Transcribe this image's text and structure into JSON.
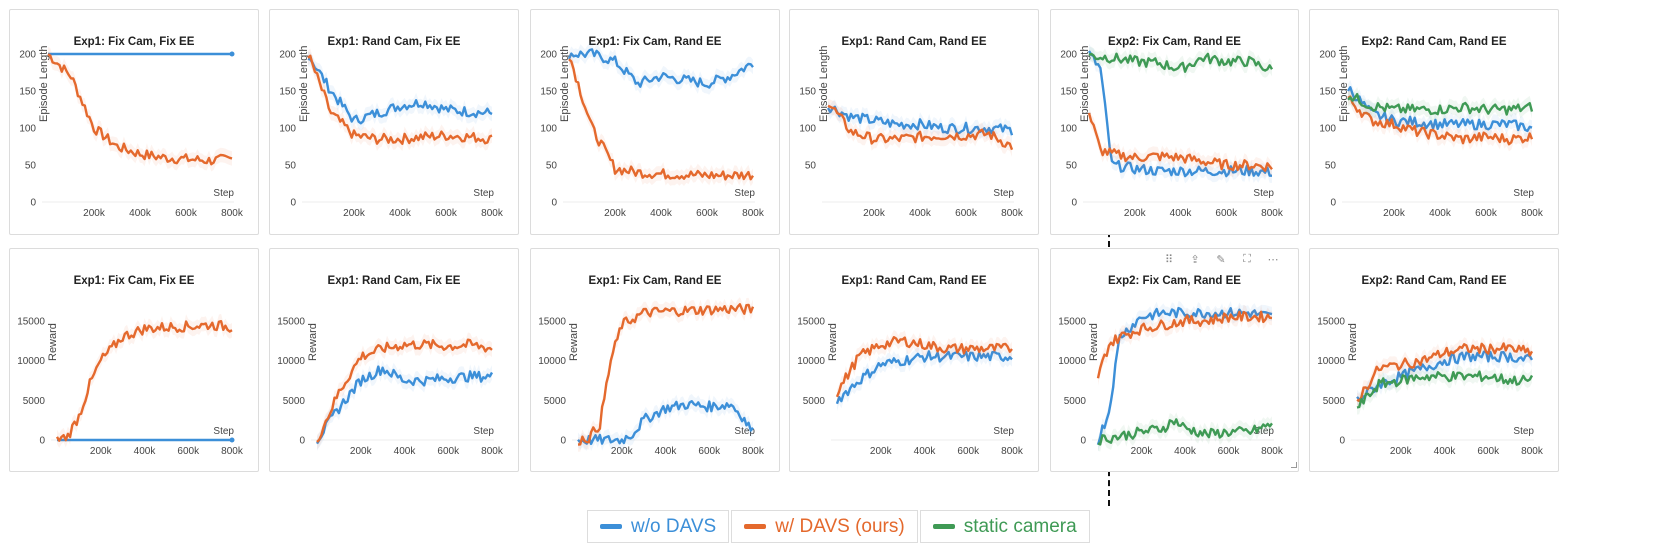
{
  "colors": {
    "wo": "#3c8fd8",
    "w": "#e4692d",
    "static": "#3f9a55"
  },
  "legend": [
    {
      "label": "w/o DAVS",
      "color": "#3c8fd8"
    },
    {
      "label": "w/ DAVS (ours)",
      "color": "#e4692d"
    },
    {
      "label": "static camera",
      "color": "#3f9a55"
    }
  ],
  "toolbar_icons": [
    "drag-handle-icon",
    "share-icon",
    "edit-icon",
    "expand-icon",
    "more-icon"
  ],
  "panels": [
    {
      "title": "Exp1: Fix Cam, Fix EE",
      "ylabel": "Episode Length",
      "xlabel": "Step",
      "yticks": [
        0,
        50,
        100,
        150,
        200
      ],
      "xticks": [
        "200k",
        "400k",
        "600k",
        "800k"
      ],
      "ymax": 200,
      "kind": "len-fixfix"
    },
    {
      "title": "Exp1: Rand Cam, Fix EE",
      "ylabel": "Episode Length",
      "xlabel": "Step",
      "yticks": [
        0,
        50,
        100,
        150,
        200
      ],
      "xticks": [
        "200k",
        "400k",
        "600k",
        "800k"
      ],
      "ymax": 200,
      "kind": "len-randfix"
    },
    {
      "title": "Exp1: Fix Cam, Rand EE",
      "ylabel": "Episode Length",
      "xlabel": "Step",
      "yticks": [
        0,
        50,
        100,
        150,
        200
      ],
      "xticks": [
        "200k",
        "400k",
        "600k",
        "800k"
      ],
      "ymax": 200,
      "kind": "len-fixrand"
    },
    {
      "title": "Exp1: Rand Cam, Rand EE",
      "ylabel": "Episode Length",
      "xlabel": "Step",
      "yticks": [
        50,
        100,
        150
      ],
      "xticks": [
        "200k",
        "400k",
        "600k",
        "800k"
      ],
      "ymax": 200,
      "kind": "len-randrand"
    },
    {
      "title": "Exp2: Fix Cam, Rand EE",
      "ylabel": "Episode Length",
      "xlabel": "Step",
      "yticks": [
        0,
        50,
        100,
        150,
        200
      ],
      "xticks": [
        "200k",
        "400k",
        "600k",
        "800k"
      ],
      "ymax": 200,
      "kind": "len-exp2fix"
    },
    {
      "title": "Exp2: Rand Cam, Rand EE",
      "ylabel": "Episode Length",
      "xlabel": "Step",
      "yticks": [
        0,
        50,
        100,
        150,
        200
      ],
      "xticks": [
        "200k",
        "400k",
        "600k",
        "800k"
      ],
      "ymax": 200,
      "kind": "len-exp2rand"
    },
    {
      "title": "Exp1: Fix Cam, Fix EE",
      "ylabel": "Reward",
      "xlabel": "Step",
      "yticks": [
        0,
        5000,
        10000,
        15000
      ],
      "xticks": [
        "200k",
        "400k",
        "600k",
        "800k"
      ],
      "ymax": 18500,
      "kind": "rew-fixfix"
    },
    {
      "title": "Exp1: Rand Cam, Fix EE",
      "ylabel": "Reward",
      "xlabel": "Step",
      "yticks": [
        0,
        5000,
        10000,
        15000
      ],
      "xticks": [
        "200k",
        "400k",
        "600k",
        "800k"
      ],
      "ymax": 18500,
      "kind": "rew-randfix"
    },
    {
      "title": "Exp1: Fix Cam, Rand EE",
      "ylabel": "Reward",
      "xlabel": "Step",
      "yticks": [
        0,
        5000,
        10000,
        15000
      ],
      "xticks": [
        "200k",
        "400k",
        "600k",
        "800k"
      ],
      "ymax": 18500,
      "kind": "rew-fixrand"
    },
    {
      "title": "Exp1: Rand Cam, Rand EE",
      "ylabel": "Reward",
      "xlabel": "Step",
      "yticks": [
        5000,
        10000,
        15000
      ],
      "xticks": [
        "200k",
        "400k",
        "600k",
        "800k"
      ],
      "ymax": 18500,
      "kind": "rew-randrand"
    },
    {
      "title": "Exp2: Fix Cam, Rand EE",
      "ylabel": "Reward",
      "xlabel": "Step",
      "yticks": [
        0,
        5000,
        10000,
        15000
      ],
      "xticks": [
        "200k",
        "400k",
        "600k",
        "800k"
      ],
      "ymax": 18500,
      "kind": "rew-exp2fix"
    },
    {
      "title": "Exp2: Rand Cam, Rand EE",
      "ylabel": "Reward",
      "xlabel": "Step",
      "yticks": [
        0,
        5000,
        10000,
        15000
      ],
      "xticks": [
        "200k",
        "400k",
        "600k",
        "800k"
      ],
      "ymax": 18500,
      "kind": "rew-exp2rand"
    }
  ],
  "chart_data": [
    {
      "type": "line",
      "title": "Exp1: Fix Cam, Fix EE",
      "xlabel": "Step",
      "ylabel": "Episode Length",
      "xlim": [
        0,
        800000
      ],
      "ylim": [
        0,
        200
      ],
      "series": [
        {
          "name": "w/o DAVS",
          "x": [
            0,
            800000
          ],
          "values": [
            200,
            200
          ]
        },
        {
          "name": "w/ DAVS (ours)",
          "x": [
            0,
            100000,
            200000,
            300000,
            400000,
            500000,
            600000,
            700000,
            800000
          ],
          "values": [
            200,
            170,
            100,
            75,
            65,
            60,
            58,
            56,
            58
          ]
        }
      ]
    },
    {
      "type": "line",
      "title": "Exp1: Rand Cam, Fix EE",
      "xlabel": "Step",
      "ylabel": "Episode Length",
      "xlim": [
        0,
        800000
      ],
      "ylim": [
        0,
        200
      ],
      "series": [
        {
          "name": "w/o DAVS",
          "x": [
            0,
            100000,
            200000,
            300000,
            400000,
            500000,
            600000,
            700000,
            800000
          ],
          "values": [
            200,
            150,
            110,
            120,
            130,
            135,
            125,
            122,
            120
          ]
        },
        {
          "name": "w/ DAVS (ours)",
          "x": [
            0,
            100000,
            200000,
            300000,
            400000,
            500000,
            600000,
            700000,
            800000
          ],
          "values": [
            200,
            120,
            90,
            85,
            85,
            88,
            90,
            88,
            85
          ]
        }
      ]
    },
    {
      "type": "line",
      "title": "Exp1: Fix Cam, Rand EE",
      "xlabel": "Step",
      "ylabel": "Episode Length",
      "xlim": [
        0,
        800000
      ],
      "ylim": [
        0,
        200
      ],
      "series": [
        {
          "name": "w/o DAVS",
          "x": [
            0,
            100000,
            200000,
            300000,
            400000,
            500000,
            600000,
            700000,
            800000
          ],
          "values": [
            200,
            200,
            190,
            160,
            170,
            165,
            160,
            170,
            188
          ]
        },
        {
          "name": "w/ DAVS (ours)",
          "x": [
            0,
            100000,
            200000,
            300000,
            400000,
            500000,
            600000,
            700000,
            800000
          ],
          "values": [
            200,
            100,
            45,
            40,
            38,
            37,
            36,
            36,
            37
          ]
        }
      ]
    },
    {
      "type": "line",
      "title": "Exp1: Rand Cam, Rand EE",
      "xlabel": "Step",
      "ylabel": "Episode Length",
      "xlim": [
        0,
        800000
      ],
      "ylim": [
        0,
        200
      ],
      "series": [
        {
          "name": "w/o DAVS",
          "x": [
            0,
            100000,
            200000,
            300000,
            400000,
            500000,
            600000,
            700000,
            800000
          ],
          "values": [
            130,
            115,
            110,
            105,
            105,
            100,
            100,
            100,
            97
          ]
        },
        {
          "name": "w/ DAVS (ours)",
          "x": [
            0,
            100000,
            200000,
            300000,
            400000,
            500000,
            600000,
            700000,
            800000
          ],
          "values": [
            135,
            95,
            85,
            85,
            88,
            90,
            90,
            92,
            75
          ]
        }
      ]
    },
    {
      "type": "line",
      "title": "Exp2: Fix Cam, Rand EE",
      "xlabel": "Step",
      "ylabel": "Episode Length",
      "xlim": [
        0,
        800000
      ],
      "ylim": [
        0,
        200
      ],
      "series": [
        {
          "name": "w/o DAVS",
          "x": [
            0,
            50000,
            100000,
            200000,
            300000,
            400000,
            500000,
            600000,
            700000,
            800000
          ],
          "values": [
            200,
            180,
            50,
            45,
            42,
            42,
            42,
            42,
            42,
            40
          ]
        },
        {
          "name": "w/ DAVS (ours)",
          "x": [
            0,
            50000,
            100000,
            200000,
            300000,
            400000,
            500000,
            600000,
            700000,
            800000
          ],
          "values": [
            120,
            70,
            65,
            60,
            62,
            60,
            55,
            50,
            50,
            48
          ]
        },
        {
          "name": "static camera",
          "x": [
            0,
            100000,
            200000,
            300000,
            400000,
            500000,
            600000,
            700000,
            800000
          ],
          "values": [
            198,
            195,
            190,
            188,
            180,
            195,
            190,
            190,
            178
          ]
        }
      ]
    },
    {
      "type": "line",
      "title": "Exp2: Rand Cam, Rand EE",
      "xlabel": "Step",
      "ylabel": "Episode Length",
      "xlim": [
        0,
        800000
      ],
      "ylim": [
        0,
        200
      ],
      "series": [
        {
          "name": "w/o DAVS",
          "x": [
            0,
            100000,
            200000,
            300000,
            400000,
            500000,
            600000,
            700000,
            800000
          ],
          "values": [
            155,
            120,
            110,
            108,
            105,
            105,
            105,
            105,
            100
          ]
        },
        {
          "name": "w/ DAVS (ours)",
          "x": [
            0,
            100000,
            200000,
            300000,
            400000,
            500000,
            600000,
            700000,
            800000
          ],
          "values": [
            140,
            110,
            105,
            95,
            90,
            85,
            88,
            85,
            88
          ]
        },
        {
          "name": "static camera",
          "x": [
            0,
            100000,
            200000,
            300000,
            400000,
            500000,
            600000,
            700000,
            800000
          ],
          "values": [
            145,
            130,
            125,
            125,
            125,
            128,
            125,
            125,
            128
          ]
        }
      ]
    },
    {
      "type": "line",
      "title": "Exp1: Fix Cam, Fix EE",
      "xlabel": "Step",
      "ylabel": "Reward",
      "xlim": [
        0,
        800000
      ],
      "ylim": [
        0,
        18500
      ],
      "series": [
        {
          "name": "w/o DAVS",
          "x": [
            0,
            800000
          ],
          "values": [
            0,
            0
          ]
        },
        {
          "name": "w/ DAVS (ours)",
          "x": [
            0,
            50000,
            100000,
            150000,
            200000,
            300000,
            400000,
            500000,
            600000,
            700000,
            800000
          ],
          "values": [
            0,
            500,
            3000,
            7000,
            10000,
            13000,
            14000,
            14200,
            14300,
            14500,
            14200
          ]
        }
      ]
    },
    {
      "type": "line",
      "title": "Exp1: Rand Cam, Fix EE",
      "xlabel": "Step",
      "ylabel": "Reward",
      "xlim": [
        0,
        800000
      ],
      "ylim": [
        0,
        18500
      ],
      "series": [
        {
          "name": "w/o DAVS",
          "x": [
            0,
            100000,
            200000,
            300000,
            400000,
            500000,
            600000,
            700000,
            800000
          ],
          "values": [
            0,
            4000,
            7500,
            9000,
            7500,
            7500,
            7800,
            8000,
            8000
          ]
        },
        {
          "name": "w/ DAVS (ours)",
          "x": [
            0,
            100000,
            200000,
            300000,
            400000,
            500000,
            600000,
            700000,
            800000
          ],
          "values": [
            0,
            6000,
            10500,
            11500,
            12000,
            12000,
            11800,
            12000,
            11500
          ]
        }
      ]
    },
    {
      "type": "line",
      "title": "Exp1: Fix Cam, Rand EE",
      "xlabel": "Step",
      "ylabel": "Reward",
      "xlim": [
        0,
        800000
      ],
      "ylim": [
        0,
        18500
      ],
      "series": [
        {
          "name": "w/o DAVS",
          "x": [
            0,
            100000,
            200000,
            250000,
            300000,
            400000,
            500000,
            600000,
            700000,
            750000,
            800000
          ],
          "values": [
            0,
            0,
            0,
            800,
            2500,
            4000,
            4500,
            4200,
            4500,
            3000,
            1000
          ]
        },
        {
          "name": "w/ DAVS (ours)",
          "x": [
            0,
            50000,
            100000,
            150000,
            200000,
            300000,
            400000,
            500000,
            600000,
            700000,
            800000
          ],
          "values": [
            0,
            300,
            2000,
            10000,
            14500,
            16000,
            16200,
            16300,
            16400,
            16500,
            16400
          ]
        }
      ]
    },
    {
      "type": "line",
      "title": "Exp1: Rand Cam, Rand EE",
      "xlabel": "Step",
      "ylabel": "Reward",
      "xlim": [
        0,
        800000
      ],
      "ylim": [
        0,
        18500
      ],
      "series": [
        {
          "name": "w/o DAVS",
          "x": [
            0,
            100000,
            200000,
            300000,
            400000,
            500000,
            600000,
            700000,
            800000
          ],
          "values": [
            5000,
            7500,
            9500,
            10000,
            10500,
            10500,
            10500,
            10500,
            10500
          ]
        },
        {
          "name": "w/ DAVS (ours)",
          "x": [
            0,
            100000,
            200000,
            300000,
            400000,
            500000,
            600000,
            700000,
            800000
          ],
          "values": [
            6000,
            10500,
            12000,
            12500,
            12000,
            11500,
            11500,
            11500,
            11500
          ]
        }
      ]
    },
    {
      "type": "line",
      "title": "Exp2: Fix Cam, Rand EE",
      "xlabel": "Step",
      "ylabel": "Reward",
      "xlim": [
        0,
        800000
      ],
      "ylim": [
        0,
        18500
      ],
      "series": [
        {
          "name": "w/o DAVS",
          "x": [
            0,
            50000,
            100000,
            200000,
            300000,
            400000,
            500000,
            600000,
            700000,
            800000
          ],
          "values": [
            0,
            3500,
            13000,
            15500,
            16000,
            16000,
            16000,
            16000,
            16000,
            15500
          ]
        },
        {
          "name": "w/ DAVS (ours)",
          "x": [
            0,
            50000,
            100000,
            200000,
            300000,
            400000,
            500000,
            600000,
            700000,
            800000
          ],
          "values": [
            8000,
            12000,
            13000,
            14000,
            14500,
            15000,
            15000,
            15500,
            15500,
            15500
          ]
        },
        {
          "name": "static camera",
          "x": [
            0,
            100000,
            200000,
            300000,
            350000,
            400000,
            500000,
            600000,
            700000,
            750000,
            800000
          ],
          "values": [
            0,
            500,
            1000,
            1500,
            2500,
            1500,
            700,
            1000,
            1000,
            1500,
            2000
          ]
        }
      ]
    },
    {
      "type": "line",
      "title": "Exp2: Rand Cam, Rand EE",
      "xlabel": "Step",
      "ylabel": "Reward",
      "xlim": [
        0,
        800000
      ],
      "ylim": [
        0,
        18500
      ],
      "series": [
        {
          "name": "w/o DAVS",
          "x": [
            0,
            100000,
            200000,
            300000,
            400000,
            500000,
            600000,
            700000,
            800000
          ],
          "values": [
            5000,
            7000,
            8000,
            9000,
            10000,
            10500,
            10500,
            10500,
            10000
          ]
        },
        {
          "name": "w/ DAVS (ours)",
          "x": [
            0,
            100000,
            200000,
            300000,
            400000,
            500000,
            600000,
            700000,
            800000
          ],
          "values": [
            5000,
            9000,
            9500,
            10000,
            11000,
            11500,
            11500,
            11500,
            11000
          ]
        },
        {
          "name": "static camera",
          "x": [
            0,
            100000,
            200000,
            300000,
            400000,
            500000,
            600000,
            700000,
            800000
          ],
          "values": [
            4000,
            7000,
            7500,
            8000,
            8000,
            8000,
            8000,
            7500,
            7500
          ]
        }
      ]
    }
  ]
}
